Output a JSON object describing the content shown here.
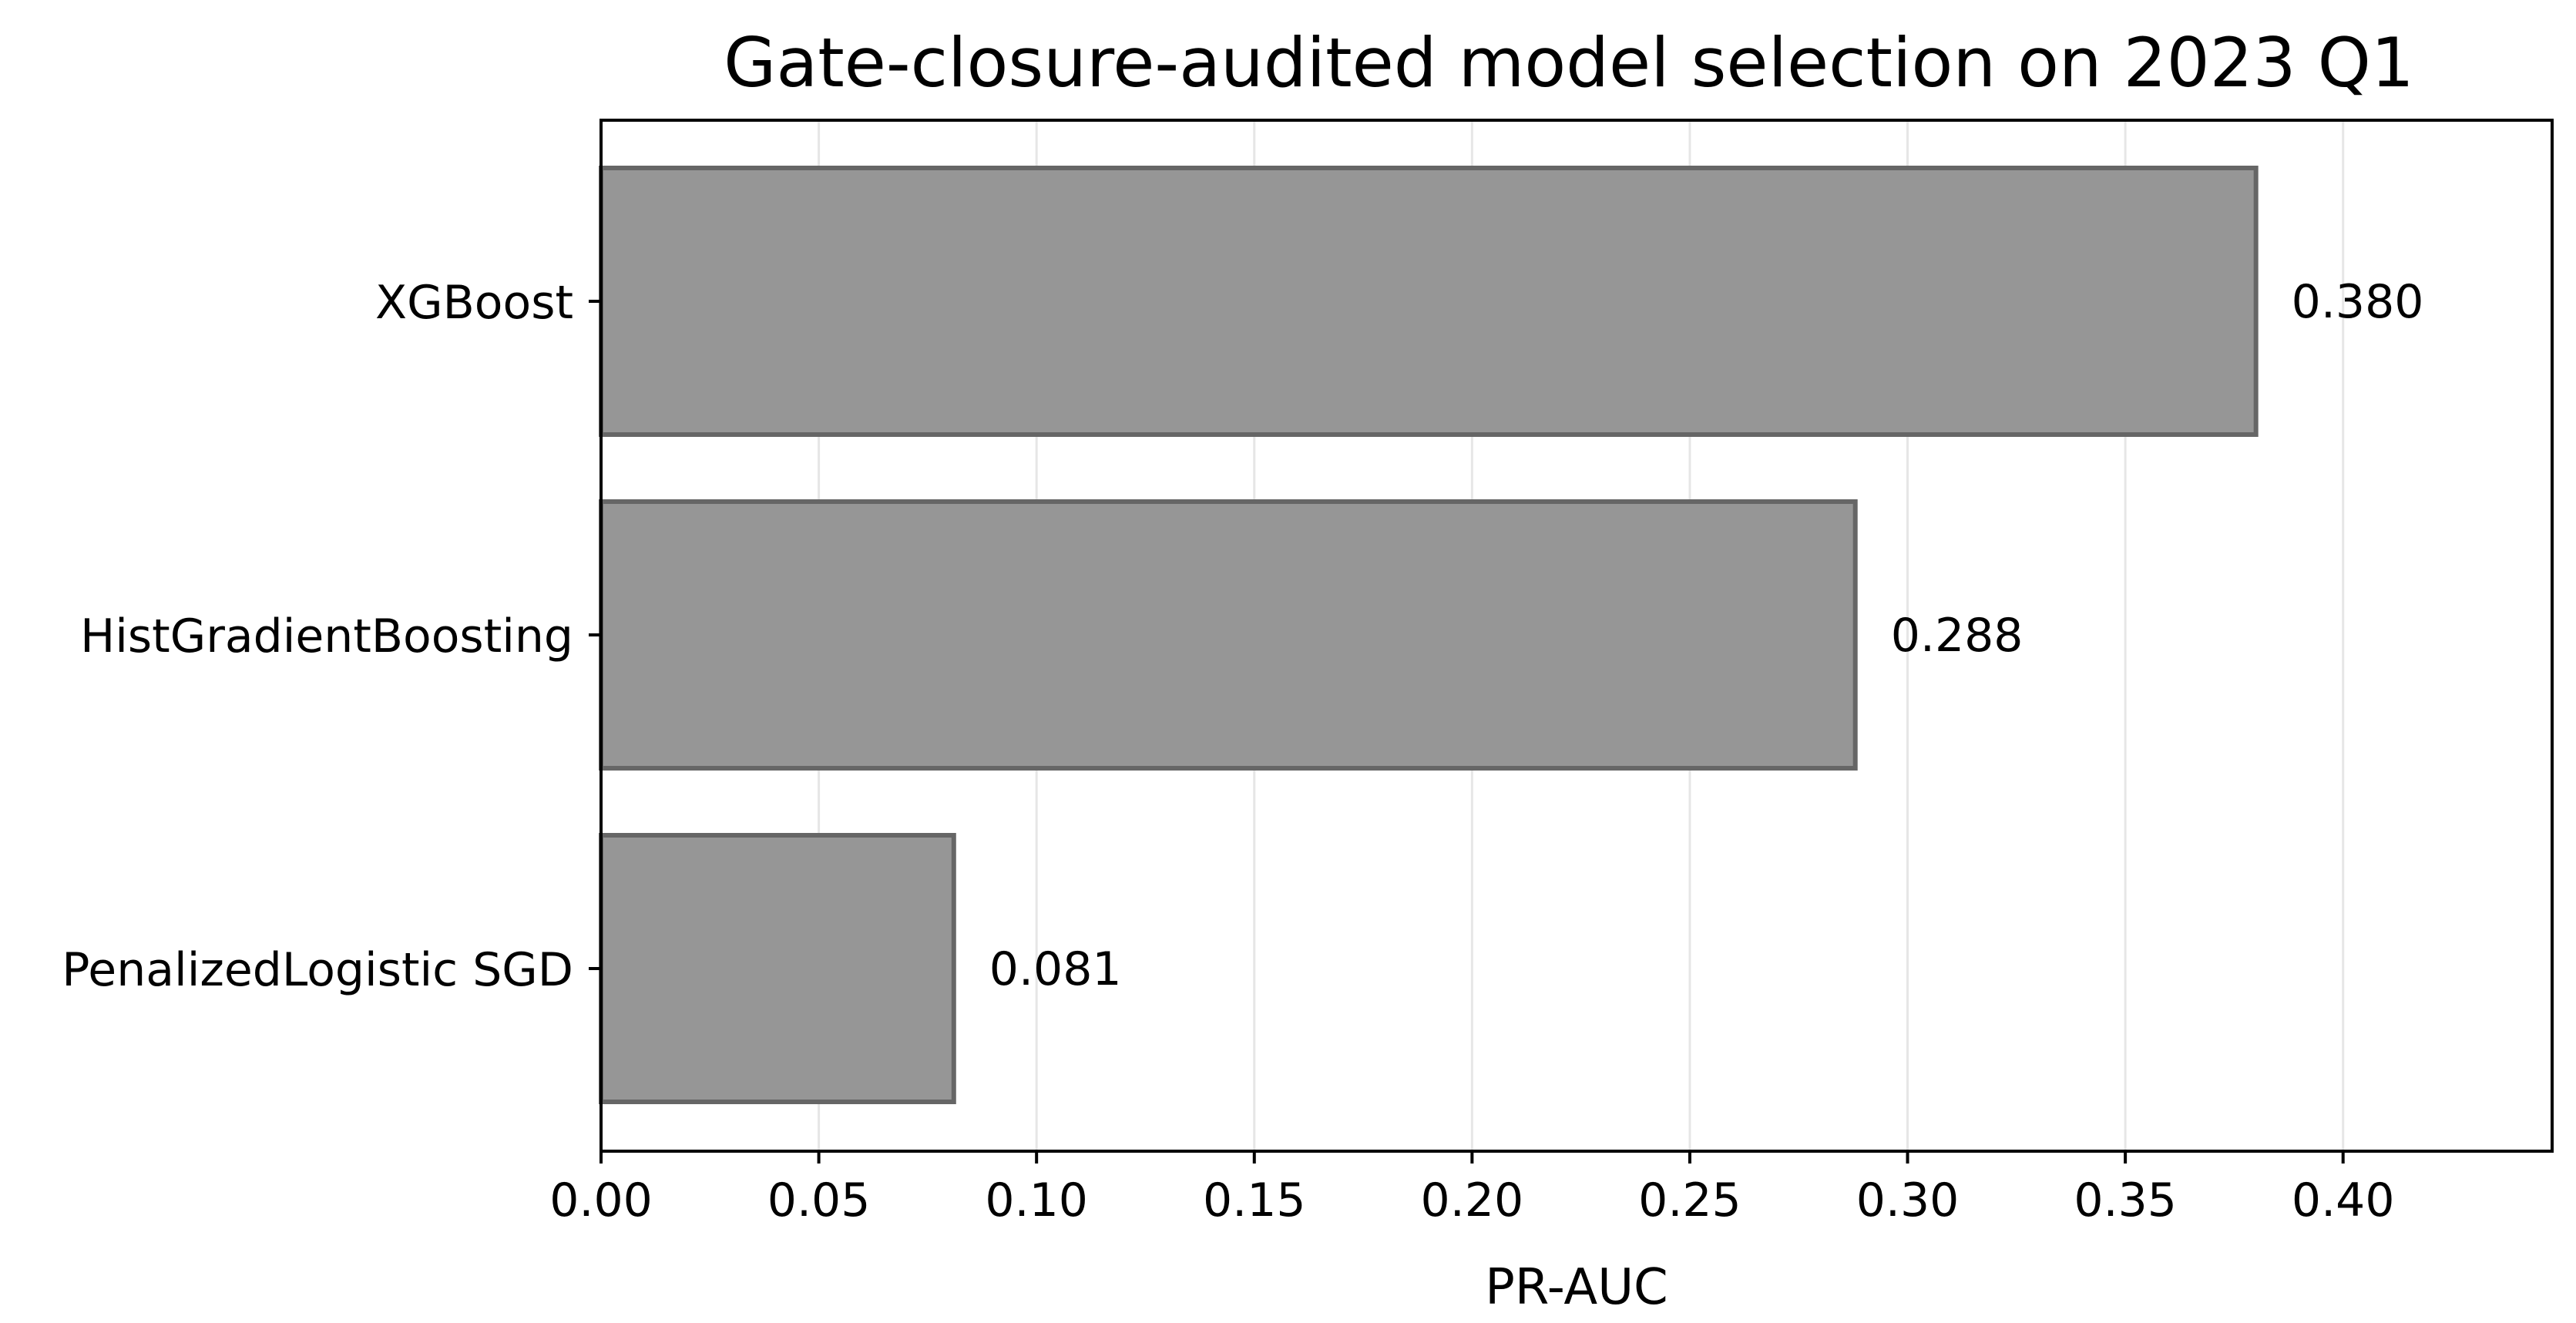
{
  "chart_data": {
    "type": "bar",
    "orientation": "horizontal",
    "title": "Gate-closure-audited model selection on 2023 Q1",
    "xlabel": "PR-AUC",
    "ylabel": "",
    "categories": [
      "XGBoost",
      "HistGradientBoosting",
      "PenalizedLogistic SGD"
    ],
    "values": [
      0.38,
      0.288,
      0.081
    ],
    "value_labels": [
      "0.380",
      "0.288",
      "0.081"
    ],
    "xlim": [
      0,
      0.448
    ],
    "xticks": [
      0.0,
      0.05,
      0.1,
      0.15,
      0.2,
      0.25,
      0.3,
      0.35,
      0.4
    ],
    "xtick_labels": [
      "0.00",
      "0.05",
      "0.10",
      "0.15",
      "0.20",
      "0.25",
      "0.30",
      "0.35",
      "0.40"
    ],
    "grid": "x",
    "legend": "none",
    "colors": {
      "bar_fill": "#969696",
      "bar_edge": "#666666",
      "grid": "#e6e6e6",
      "axis": "#000000"
    }
  }
}
